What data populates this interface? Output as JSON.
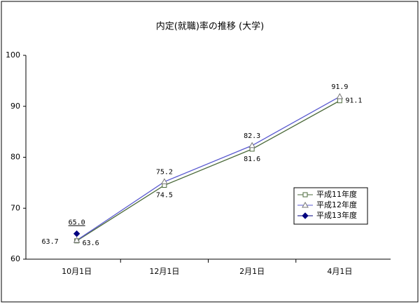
{
  "chart_data": {
    "type": "line",
    "title": "内定(就職)率の推移 (大学)",
    "categories": [
      "10月1日",
      "12月1日",
      "2月1日",
      "4月1日"
    ],
    "series": [
      {
        "name": "平成11年度",
        "color": "#4d6b3c",
        "marker": "square",
        "values": [
          63.6,
          74.5,
          81.6,
          91.1
        ],
        "value_labels": [
          "63.6",
          "74.5",
          "81.6",
          "91.1"
        ]
      },
      {
        "name": "平成12年度",
        "color": "#5a5ad0",
        "marker": "triangle",
        "values": [
          63.7,
          75.2,
          82.3,
          91.9
        ],
        "value_labels": [
          "63.7",
          "75.2",
          "82.3",
          "91.9"
        ]
      },
      {
        "name": "平成13年度",
        "color": "#000080",
        "marker": "diamond",
        "values": [
          65.0,
          null,
          null,
          null
        ],
        "value_labels": [
          "65.0",
          null,
          null,
          null
        ]
      }
    ],
    "ylim": [
      60,
      100
    ],
    "yticks": [
      60,
      70,
      80,
      90,
      100
    ],
    "grid": false,
    "legend": "right"
  }
}
